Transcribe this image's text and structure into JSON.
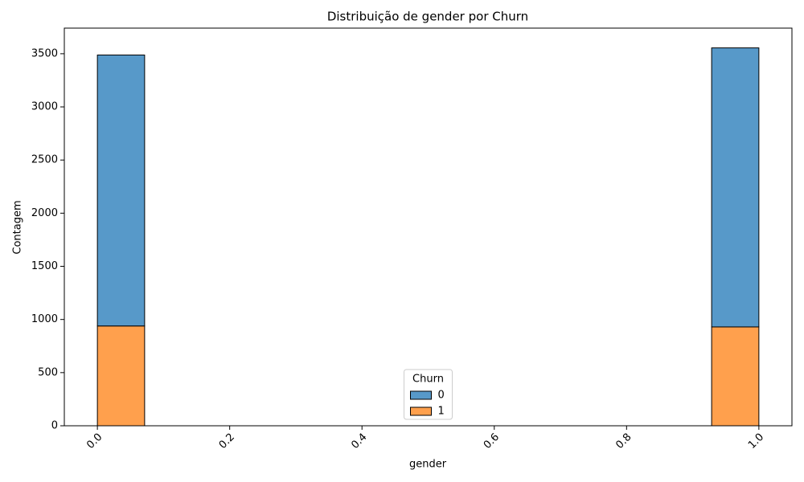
{
  "chart_data": {
    "type": "histogram",
    "title": "Distribuição de gender por Churn",
    "x_label": "gender",
    "y_label": "Contagem",
    "legend_title": "Churn",
    "legend_position": "lower center",
    "bins": [
      0,
      0.0714,
      0.1429,
      0.2143,
      0.2857,
      0.3571,
      0.4286,
      0.5,
      0.5714,
      0.6429,
      0.7143,
      0.7857,
      0.8571,
      0.9286,
      1
    ],
    "stacked": true,
    "series": [
      {
        "name": "0",
        "color": "#5799c9",
        "values": [
          2549,
          0,
          0,
          0,
          0,
          0,
          0,
          0,
          0,
          0,
          0,
          0,
          0,
          2625
        ]
      },
      {
        "name": "1",
        "color": "#ffa04d",
        "values": [
          939,
          0,
          0,
          0,
          0,
          0,
          0,
          0,
          0,
          0,
          0,
          0,
          0,
          930
        ]
      }
    ],
    "xlim": [
      -0.05,
      1.05
    ],
    "ylim": [
      0,
      3741
    ],
    "xticks": [
      {
        "value": 0,
        "label": "0.0"
      },
      {
        "value": 0.2,
        "label": "0.2"
      },
      {
        "value": 0.4,
        "label": "0.4"
      },
      {
        "value": 0.6,
        "label": "0.6"
      },
      {
        "value": 0.8,
        "label": "0.8"
      },
      {
        "value": 1,
        "label": "1.0"
      }
    ],
    "yticks": [
      0,
      500,
      1000,
      1500,
      2000,
      2500,
      3000,
      3500
    ]
  }
}
